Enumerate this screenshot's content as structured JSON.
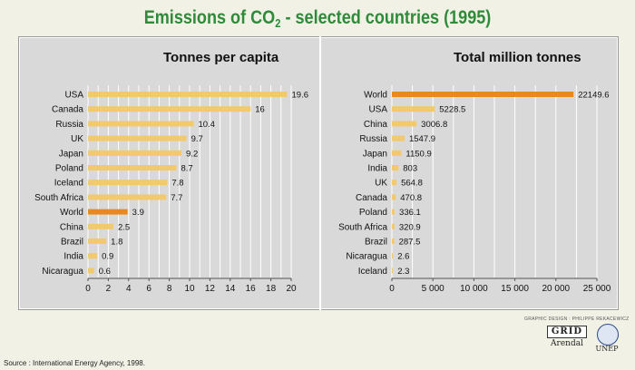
{
  "title_main": "Emissions of CO",
  "title_sub": "2",
  "title_tail": " - selected countries (1995)",
  "credit": "GRAPHIC DESIGN : PHILIPPE REKACEWICZ",
  "source": "Source : International Energy Agency, 1998.",
  "logos": {
    "grid": "GRID",
    "arendal": "Arendal",
    "unep": "UNEP"
  },
  "colors": {
    "bar": "#f2c96d",
    "highlight": "#e8891f",
    "panel": "#d9d9d9",
    "grid": "#ffffff",
    "title": "#2f8a3a"
  },
  "chart_data": [
    {
      "type": "bar",
      "orientation": "horizontal",
      "title": "Tonnes per capita",
      "categories": [
        "USA",
        "Canada",
        "Russia",
        "UK",
        "Japan",
        "Poland",
        "Iceland",
        "South Africa",
        "World",
        "China",
        "Brazil",
        "India",
        "Nicaragua"
      ],
      "values": [
        19.6,
        16,
        10.4,
        9.7,
        9.2,
        8.7,
        7.8,
        7.7,
        3.9,
        2.5,
        1.8,
        0.9,
        0.6
      ],
      "value_labels": [
        "19.6",
        "16",
        "10.4",
        "9.7",
        "9.2",
        "8.7",
        "7.8",
        "7.7",
        "3.9",
        "2.5",
        "1.8",
        "0.9",
        "0.6"
      ],
      "highlight": "World",
      "xlim": [
        0,
        20
      ],
      "xticks": [
        0,
        2,
        4,
        6,
        8,
        10,
        12,
        14,
        16,
        18,
        20
      ],
      "xtick_labels": [
        "0",
        "2",
        "4",
        "6",
        "8",
        "10",
        "12",
        "14",
        "16",
        "18",
        "20"
      ],
      "grid": true
    },
    {
      "type": "bar",
      "orientation": "horizontal",
      "title": "Total million tonnes",
      "categories": [
        "World",
        "USA",
        "China",
        "Russia",
        "Japan",
        "India",
        "UK",
        "Canada",
        "Poland",
        "South Africa",
        "Brazil",
        "Nicaragua",
        "Iceland"
      ],
      "values": [
        22149.6,
        5228.5,
        3006.8,
        1547.9,
        1150.9,
        803,
        564.8,
        470.8,
        336.1,
        320.9,
        287.5,
        2.6,
        2.3
      ],
      "value_labels": [
        "22149.6",
        "5228.5",
        "3006.8",
        "1547.9",
        "1150.9",
        "803",
        "564.8",
        "470.8",
        "336.1",
        "320.9",
        "287.5",
        "2.6",
        "2.3"
      ],
      "highlight": "World",
      "xlim": [
        0,
        25000
      ],
      "xticks": [
        0,
        5000,
        10000,
        15000,
        20000,
        25000
      ],
      "xtick_labels": [
        "0",
        "5 000",
        "10 000",
        "15 000",
        "20 000",
        "25 000"
      ],
      "grid": true
    }
  ]
}
